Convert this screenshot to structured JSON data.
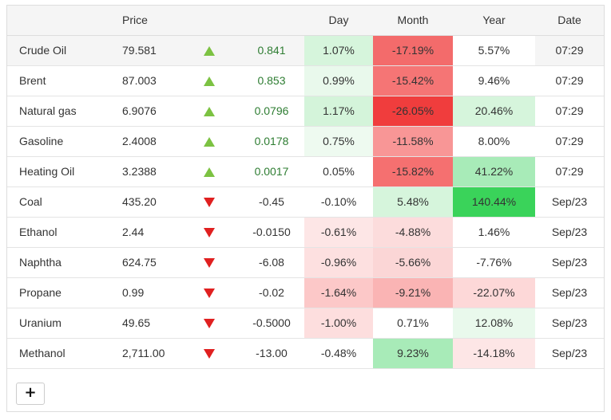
{
  "table": {
    "headers": {
      "name": "",
      "price": "Price",
      "arrow": "",
      "change": "",
      "day": "Day",
      "month": "Month",
      "year": "Year",
      "date": "Date"
    },
    "rows": [
      {
        "name": "Crude Oil",
        "price": "79.581",
        "direction": "up",
        "change": "0.841",
        "day": "1.07%",
        "month": "-17.19%",
        "year": "5.57%",
        "date": "07:29",
        "colors": {
          "day": "#d6f5dc",
          "month": "#f36b6b",
          "year": "#ffffff"
        }
      },
      {
        "name": "Brent",
        "price": "87.003",
        "direction": "up",
        "change": "0.853",
        "day": "0.99%",
        "month": "-15.42%",
        "year": "9.46%",
        "date": "07:29",
        "colors": {
          "day": "#e9f9ec",
          "month": "#f57575",
          "year": "#ffffff"
        }
      },
      {
        "name": "Natural gas",
        "price": "6.9076",
        "direction": "up",
        "change": "0.0796",
        "day": "1.17%",
        "month": "-26.05%",
        "year": "20.46%",
        "date": "07:29",
        "colors": {
          "day": "#d4f4da",
          "month": "#f03d3d",
          "year": "#d6f5dc"
        }
      },
      {
        "name": "Gasoline",
        "price": "2.4008",
        "direction": "up",
        "change": "0.0178",
        "day": "0.75%",
        "month": "-11.58%",
        "year": "8.00%",
        "date": "07:29",
        "colors": {
          "day": "#eefaf0",
          "month": "#f89696",
          "year": "#ffffff"
        }
      },
      {
        "name": "Heating Oil",
        "price": "3.2388",
        "direction": "up",
        "change": "0.0017",
        "day": "0.05%",
        "month": "-15.82%",
        "year": "41.22%",
        "date": "07:29",
        "colors": {
          "day": "#ffffff",
          "month": "#f57070",
          "year": "#a8ebb8"
        }
      },
      {
        "name": "Coal",
        "price": "435.20",
        "direction": "down",
        "change": "-0.45",
        "day": "-0.10%",
        "month": "5.48%",
        "year": "140.44%",
        "date": "Sep/23",
        "colors": {
          "day": "#ffffff",
          "month": "#d6f5dc",
          "year": "#3ad35a"
        }
      },
      {
        "name": "Ethanol",
        "price": "2.44",
        "direction": "down",
        "change": "-0.0150",
        "day": "-0.61%",
        "month": "-4.88%",
        "year": "1.46%",
        "date": "Sep/23",
        "colors": {
          "day": "#fde6e6",
          "month": "#fcdcdc",
          "year": "#ffffff"
        }
      },
      {
        "name": "Naphtha",
        "price": "624.75",
        "direction": "down",
        "change": "-6.08",
        "day": "-0.96%",
        "month": "-5.66%",
        "year": "-7.76%",
        "date": "Sep/23",
        "colors": {
          "day": "#fde0e0",
          "month": "#fbd6d6",
          "year": "#ffffff"
        }
      },
      {
        "name": "Propane",
        "price": "0.99",
        "direction": "down",
        "change": "-0.02",
        "day": "-1.64%",
        "month": "-9.21%",
        "year": "-22.07%",
        "date": "Sep/23",
        "colors": {
          "day": "#fcc8c8",
          "month": "#fab4b4",
          "year": "#fdd8d8"
        }
      },
      {
        "name": "Uranium",
        "price": "49.65",
        "direction": "down",
        "change": "-0.5000",
        "day": "-1.00%",
        "month": "0.71%",
        "year": "12.08%",
        "date": "Sep/23",
        "colors": {
          "day": "#fddede",
          "month": "#ffffff",
          "year": "#e9f9ec"
        }
      },
      {
        "name": "Methanol",
        "price": "2,711.00",
        "direction": "down",
        "change": "-13.00",
        "day": "-0.48%",
        "month": "9.23%",
        "year": "-14.18%",
        "date": "Sep/23",
        "colors": {
          "day": "#ffffff",
          "month": "#a8ebb8",
          "year": "#fde6e6"
        }
      }
    ]
  },
  "add_button": {
    "label": "+",
    "icon": "plus-icon"
  }
}
